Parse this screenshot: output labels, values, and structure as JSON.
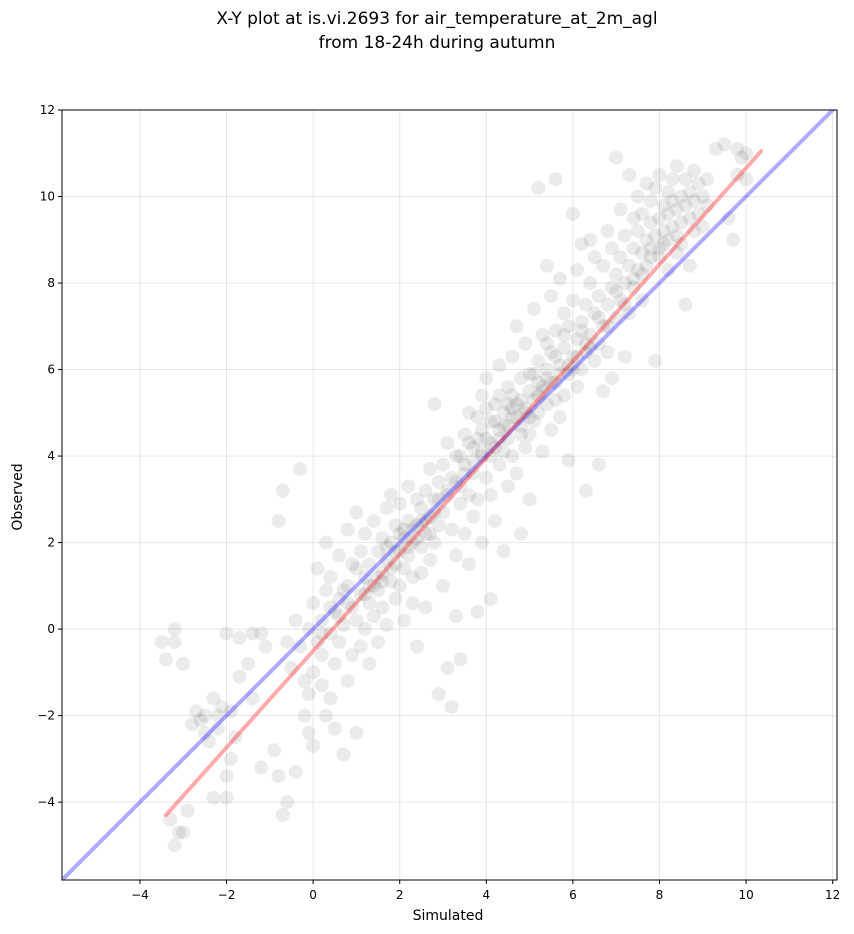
{
  "chart_data": {
    "type": "scatter",
    "title_lines": [
      "X-Y plot at is.vi.2693 for air_temperature_at_2m_agl",
      "from 18-24h during autumn"
    ],
    "xlabel": "Simulated",
    "ylabel": "Observed",
    "xlim": [
      -5.8,
      12.1
    ],
    "ylim": [
      -5.8,
      12.0
    ],
    "xticks": [
      -4,
      -2,
      0,
      2,
      4,
      6,
      8,
      10,
      12
    ],
    "yticks": [
      -4,
      -2,
      0,
      2,
      4,
      6,
      8,
      10,
      12
    ],
    "tick_labels_x": [
      "−4",
      "−2",
      "0",
      "2",
      "4",
      "6",
      "8",
      "10",
      "12"
    ],
    "tick_labels_y": [
      "−4",
      "−2",
      "0",
      "2",
      "4",
      "6",
      "8",
      "10",
      "12"
    ],
    "grid": true,
    "point_color": "#000000",
    "point_opacity": 0.08,
    "one_to_one_line": {
      "x": [
        -5.8,
        12.1
      ],
      "y": [
        -5.8,
        12.1
      ],
      "color": "#0000ff"
    },
    "fit_line": {
      "x": [
        -3.4,
        10.35
      ],
      "y": [
        -4.3,
        11.05
      ],
      "color": "#ff0000"
    },
    "points": [
      [
        -3.5,
        -0.3
      ],
      [
        -3.4,
        -0.7
      ],
      [
        -3.2,
        -0.3
      ],
      [
        -3.2,
        0.0
      ],
      [
        -3.0,
        -0.8
      ],
      [
        -3.3,
        -4.4
      ],
      [
        -3.1,
        -4.7
      ],
      [
        -3.2,
        -5.0
      ],
      [
        -2.9,
        -4.2
      ],
      [
        -3.0,
        -4.7
      ],
      [
        -2.7,
        -1.9
      ],
      [
        -2.6,
        -2.1
      ],
      [
        -2.5,
        -2.4
      ],
      [
        -2.4,
        -2.6
      ],
      [
        -2.3,
        -1.6
      ],
      [
        -2.3,
        -3.9
      ],
      [
        -2.2,
        -2.0
      ],
      [
        -2.1,
        -1.8
      ],
      [
        -2.0,
        -0.1
      ],
      [
        -2.0,
        -3.4
      ],
      [
        -2.0,
        -3.9
      ],
      [
        -1.9,
        -3.0
      ],
      [
        -1.8,
        -2.5
      ],
      [
        -1.7,
        -1.1
      ],
      [
        -1.7,
        -0.2
      ],
      [
        -1.5,
        -0.8
      ],
      [
        -1.4,
        -1.6
      ],
      [
        -1.4,
        -0.1
      ],
      [
        -1.2,
        -3.2
      ],
      [
        -1.2,
        -0.1
      ],
      [
        -1.1,
        -0.4
      ],
      [
        -0.9,
        -2.8
      ],
      [
        -0.8,
        -3.4
      ],
      [
        -0.7,
        -4.3
      ],
      [
        -0.6,
        -4.0
      ],
      [
        -0.7,
        3.2
      ],
      [
        -0.8,
        2.5
      ],
      [
        -0.4,
        -3.3
      ],
      [
        -0.3,
        3.7
      ],
      [
        -0.2,
        -2.0
      ],
      [
        -0.5,
        -0.9
      ],
      [
        -0.6,
        -0.3
      ],
      [
        -0.4,
        0.2
      ],
      [
        -0.3,
        -0.4
      ],
      [
        -0.2,
        -1.2
      ],
      [
        -0.1,
        -2.4
      ],
      [
        -0.1,
        -1.5
      ],
      [
        -0.1,
        0.0
      ],
      [
        0.0,
        -2.7
      ],
      [
        0.0,
        -1.0
      ],
      [
        0.0,
        0.6
      ],
      [
        0.1,
        -0.3
      ],
      [
        0.1,
        1.4
      ],
      [
        0.2,
        -1.3
      ],
      [
        0.2,
        -0.6
      ],
      [
        0.2,
        0.2
      ],
      [
        0.3,
        -2.0
      ],
      [
        0.3,
        0.9
      ],
      [
        0.3,
        2.0
      ],
      [
        0.4,
        -0.1
      ],
      [
        0.4,
        -1.6
      ],
      [
        0.4,
        1.2
      ],
      [
        0.5,
        0.4
      ],
      [
        0.5,
        -0.8
      ],
      [
        0.5,
        -2.3
      ],
      [
        0.6,
        0.7
      ],
      [
        0.6,
        1.7
      ],
      [
        0.6,
        -0.3
      ],
      [
        0.7,
        0.1
      ],
      [
        0.7,
        -2.9
      ],
      [
        0.8,
        1.0
      ],
      [
        0.8,
        -1.2
      ],
      [
        0.8,
        2.3
      ],
      [
        0.9,
        0.5
      ],
      [
        0.9,
        -0.6
      ],
      [
        0.9,
        1.5
      ],
      [
        1.0,
        0.2
      ],
      [
        1.0,
        -2.4
      ],
      [
        1.0,
        2.7
      ],
      [
        1.1,
        0.8
      ],
      [
        1.1,
        -0.4
      ],
      [
        1.1,
        1.8
      ],
      [
        1.2,
        1.2
      ],
      [
        1.2,
        0.0
      ],
      [
        1.2,
        2.2
      ],
      [
        1.3,
        0.6
      ],
      [
        1.3,
        1.5
      ],
      [
        1.3,
        -0.8
      ],
      [
        1.4,
        1.0
      ],
      [
        1.4,
        2.5
      ],
      [
        1.4,
        0.3
      ],
      [
        1.5,
        1.8
      ],
      [
        1.5,
        0.9
      ],
      [
        1.5,
        -0.3
      ],
      [
        1.6,
        1.3
      ],
      [
        1.6,
        2.1
      ],
      [
        1.6,
        0.5
      ],
      [
        1.7,
        1.6
      ],
      [
        1.7,
        2.8
      ],
      [
        1.7,
        0.1
      ],
      [
        1.8,
        1.1
      ],
      [
        1.8,
        2.0
      ],
      [
        1.8,
        3.1
      ],
      [
        1.9,
        1.5
      ],
      [
        1.9,
        0.7
      ],
      [
        1.9,
        2.4
      ],
      [
        2.0,
        1.8
      ],
      [
        2.0,
        1.0
      ],
      [
        2.0,
        2.9
      ],
      [
        2.1,
        2.1
      ],
      [
        2.1,
        1.4
      ],
      [
        2.1,
        0.2
      ],
      [
        2.2,
        2.5
      ],
      [
        2.2,
        1.7
      ],
      [
        2.2,
        3.3
      ],
      [
        2.3,
        2.0
      ],
      [
        2.3,
        1.2
      ],
      [
        2.3,
        0.6
      ],
      [
        2.4,
        2.4
      ],
      [
        2.4,
        3.0
      ],
      [
        2.4,
        -0.4
      ],
      [
        2.5,
        1.9
      ],
      [
        2.5,
        2.8
      ],
      [
        2.5,
        1.3
      ],
      [
        2.6,
        3.2
      ],
      [
        2.6,
        2.2
      ],
      [
        2.6,
        0.5
      ],
      [
        2.7,
        2.6
      ],
      [
        2.7,
        3.7
      ],
      [
        2.7,
        1.6
      ],
      [
        2.8,
        3.0
      ],
      [
        2.8,
        2.0
      ],
      [
        2.8,
        5.2
      ],
      [
        2.9,
        -1.5
      ],
      [
        2.9,
        3.4
      ],
      [
        2.9,
        2.4
      ],
      [
        3.0,
        1.0
      ],
      [
        3.0,
        3.8
      ],
      [
        3.0,
        2.7
      ],
      [
        3.1,
        3.1
      ],
      [
        3.1,
        -0.9
      ],
      [
        3.1,
        4.3
      ],
      [
        3.2,
        -1.8
      ],
      [
        3.2,
        2.3
      ],
      [
        3.2,
        3.5
      ],
      [
        3.3,
        1.7
      ],
      [
        3.3,
        4.0
      ],
      [
        3.3,
        0.3
      ],
      [
        3.4,
        2.9
      ],
      [
        3.4,
        3.3
      ],
      [
        3.4,
        -0.7
      ],
      [
        3.5,
        4.5
      ],
      [
        3.5,
        2.2
      ],
      [
        3.5,
        3.8
      ],
      [
        3.6,
        3.1
      ],
      [
        3.6,
        5.0
      ],
      [
        3.6,
        1.5
      ],
      [
        3.7,
        4.2
      ],
      [
        3.7,
        2.6
      ],
      [
        3.7,
        3.6
      ],
      [
        3.8,
        4.9
      ],
      [
        3.8,
        3.0
      ],
      [
        3.8,
        0.4
      ],
      [
        3.9,
        4.0
      ],
      [
        3.9,
        5.4
      ],
      [
        3.9,
        2.0
      ],
      [
        4.0,
        4.4
      ],
      [
        4.0,
        3.5
      ],
      [
        4.0,
        5.8
      ],
      [
        4.1,
        4.8
      ],
      [
        4.1,
        3.1
      ],
      [
        4.1,
        0.7
      ],
      [
        4.2,
        4.2
      ],
      [
        4.2,
        5.2
      ],
      [
        4.2,
        2.5
      ],
      [
        4.3,
        4.6
      ],
      [
        4.3,
        3.8
      ],
      [
        4.3,
        6.1
      ],
      [
        4.4,
        5.0
      ],
      [
        4.4,
        4.1
      ],
      [
        4.4,
        1.8
      ],
      [
        4.5,
        4.4
      ],
      [
        4.5,
        5.6
      ],
      [
        4.5,
        3.3
      ],
      [
        4.6,
        4.9
      ],
      [
        4.6,
        4.0
      ],
      [
        4.6,
        6.3
      ],
      [
        4.7,
        5.2
      ],
      [
        4.7,
        3.6
      ],
      [
        4.7,
        7.0
      ],
      [
        4.8,
        4.7
      ],
      [
        4.8,
        5.8
      ],
      [
        4.8,
        2.2
      ],
      [
        4.9,
        5.1
      ],
      [
        4.9,
        4.2
      ],
      [
        4.9,
        6.6
      ],
      [
        5.0,
        5.5
      ],
      [
        5.0,
        4.5
      ],
      [
        5.0,
        3.0
      ],
      [
        5.1,
        5.9
      ],
      [
        5.1,
        4.8
      ],
      [
        5.1,
        7.4
      ],
      [
        5.2,
        6.2
      ],
      [
        5.2,
        5.0
      ],
      [
        5.2,
        10.2
      ],
      [
        5.3,
        5.6
      ],
      [
        5.3,
        4.1
      ],
      [
        5.3,
        6.8
      ],
      [
        5.4,
        6.0
      ],
      [
        5.4,
        5.2
      ],
      [
        5.4,
        8.4
      ],
      [
        5.5,
        6.4
      ],
      [
        5.5,
        4.6
      ],
      [
        5.5,
        7.7
      ],
      [
        5.6,
        5.7
      ],
      [
        5.6,
        6.9
      ],
      [
        5.6,
        10.4
      ],
      [
        5.7,
        6.1
      ],
      [
        5.7,
        4.9
      ],
      [
        5.7,
        8.1
      ],
      [
        5.8,
        6.5
      ],
      [
        5.8,
        5.4
      ],
      [
        5.8,
        7.3
      ],
      [
        5.9,
        5.9
      ],
      [
        5.9,
        7.0
      ],
      [
        5.9,
        3.9
      ],
      [
        6.0,
        6.3
      ],
      [
        6.0,
        7.6
      ],
      [
        6.0,
        9.6
      ],
      [
        6.1,
        6.7
      ],
      [
        6.1,
        5.6
      ],
      [
        6.1,
        8.3
      ],
      [
        6.2,
        7.1
      ],
      [
        6.2,
        6.0
      ],
      [
        6.2,
        8.9
      ],
      [
        6.3,
        6.4
      ],
      [
        6.3,
        7.5
      ],
      [
        6.3,
        3.2
      ],
      [
        6.4,
        6.8
      ],
      [
        6.4,
        8.0
      ],
      [
        6.4,
        9.0
      ],
      [
        6.5,
        7.3
      ],
      [
        6.5,
        6.2
      ],
      [
        6.5,
        8.6
      ],
      [
        6.6,
        7.7
      ],
      [
        6.6,
        6.6
      ],
      [
        6.6,
        3.8
      ],
      [
        6.7,
        7.0
      ],
      [
        6.7,
        8.4
      ],
      [
        6.7,
        5.5
      ],
      [
        6.8,
        7.5
      ],
      [
        6.8,
        9.2
      ],
      [
        6.8,
        6.4
      ],
      [
        6.9,
        7.9
      ],
      [
        6.9,
        8.8
      ],
      [
        6.9,
        5.8
      ],
      [
        7.0,
        8.2
      ],
      [
        7.0,
        7.2
      ],
      [
        7.0,
        10.9
      ],
      [
        7.1,
        8.6
      ],
      [
        7.1,
        7.6
      ],
      [
        7.1,
        9.7
      ],
      [
        7.2,
        8.0
      ],
      [
        7.2,
        9.1
      ],
      [
        7.2,
        6.3
      ],
      [
        7.3,
        8.4
      ],
      [
        7.3,
        10.5
      ],
      [
        7.3,
        7.3
      ],
      [
        7.4,
        8.8
      ],
      [
        7.4,
        9.5
      ],
      [
        7.4,
        7.9
      ],
      [
        7.5,
        9.2
      ],
      [
        7.5,
        8.3
      ],
      [
        7.5,
        10.0
      ],
      [
        7.6,
        8.7
      ],
      [
        7.6,
        9.6
      ],
      [
        7.6,
        7.6
      ],
      [
        7.7,
        9.0
      ],
      [
        7.7,
        10.3
      ],
      [
        7.7,
        8.4
      ],
      [
        7.8,
        9.4
      ],
      [
        7.8,
        8.8
      ],
      [
        7.8,
        9.9
      ],
      [
        7.9,
        9.1
      ],
      [
        7.9,
        10.2
      ],
      [
        7.9,
        6.2
      ],
      [
        8.0,
        9.5
      ],
      [
        8.0,
        8.6
      ],
      [
        8.0,
        10.5
      ],
      [
        8.1,
        9.2
      ],
      [
        8.1,
        9.8
      ],
      [
        8.1,
        8.9
      ],
      [
        8.2,
        9.6
      ],
      [
        8.2,
        10.1
      ],
      [
        8.2,
        8.3
      ],
      [
        8.3,
        9.3
      ],
      [
        8.3,
        10.4
      ],
      [
        8.3,
        9.9
      ],
      [
        8.4,
        9.7
      ],
      [
        8.4,
        8.7
      ],
      [
        8.4,
        10.7
      ],
      [
        8.5,
        9.4
      ],
      [
        8.5,
        10.0
      ],
      [
        8.5,
        8.9
      ],
      [
        8.6,
        9.8
      ],
      [
        8.6,
        10.4
      ],
      [
        8.6,
        7.5
      ],
      [
        8.7,
        9.5
      ],
      [
        8.7,
        10.1
      ],
      [
        8.7,
        8.4
      ],
      [
        8.8,
        9.9
      ],
      [
        8.8,
        9.2
      ],
      [
        8.8,
        10.6
      ],
      [
        8.9,
        9.6
      ],
      [
        8.9,
        10.3
      ],
      [
        9.0,
        9.3
      ],
      [
        9.0,
        10.0
      ],
      [
        9.1,
        9.8
      ],
      [
        9.1,
        10.4
      ],
      [
        9.3,
        11.1
      ],
      [
        9.5,
        11.2
      ],
      [
        9.6,
        9.5
      ],
      [
        9.7,
        9.0
      ],
      [
        9.8,
        11.1
      ],
      [
        9.8,
        10.5
      ],
      [
        10.0,
        10.4
      ],
      [
        10.0,
        11.0
      ],
      [
        9.9,
        10.9
      ],
      [
        1.3,
        1.0
      ],
      [
        1.5,
        1.2
      ],
      [
        1.7,
        1.9
      ],
      [
        1.9,
        1.8
      ],
      [
        2.1,
        2.3
      ],
      [
        2.3,
        2.3
      ],
      [
        2.5,
        2.5
      ],
      [
        2.7,
        2.2
      ],
      [
        2.9,
        3.0
      ],
      [
        3.1,
        3.2
      ],
      [
        3.3,
        3.4
      ],
      [
        3.5,
        3.6
      ],
      [
        3.7,
        3.9
      ],
      [
        3.9,
        4.1
      ],
      [
        4.1,
        4.3
      ],
      [
        4.3,
        4.4
      ],
      [
        4.5,
        4.7
      ],
      [
        4.7,
        4.9
      ],
      [
        4.9,
        5.0
      ],
      [
        5.1,
        5.3
      ],
      [
        5.3,
        5.5
      ],
      [
        5.5,
        5.7
      ],
      [
        5.7,
        5.9
      ],
      [
        5.9,
        6.1
      ],
      [
        6.1,
        6.3
      ],
      [
        6.3,
        6.6
      ],
      [
        4.2,
        4.8
      ],
      [
        4.4,
        4.7
      ],
      [
        4.6,
        5.4
      ],
      [
        4.8,
        5.3
      ],
      [
        5.0,
        5.9
      ],
      [
        5.2,
        5.4
      ],
      [
        5.4,
        6.6
      ],
      [
        5.6,
        6.3
      ],
      [
        4.0,
        5.1
      ],
      [
        3.8,
        4.4
      ],
      [
        3.6,
        4.3
      ],
      [
        3.4,
        4.0
      ],
      [
        4.6,
        5.1
      ],
      [
        4.8,
        4.5
      ],
      [
        5.0,
        4.9
      ],
      [
        5.2,
        5.7
      ],
      [
        4.3,
        5.4
      ],
      [
        4.5,
        5.2
      ],
      [
        3.9,
        4.6
      ],
      [
        4.1,
        4.0
      ],
      [
        0.6,
        0.3
      ],
      [
        0.8,
        0.6
      ],
      [
        1.0,
        1.4
      ],
      [
        1.2,
        0.8
      ],
      [
        0.4,
        0.5
      ],
      [
        0.2,
        -0.1
      ],
      [
        0.7,
        0.9
      ],
      [
        1.6,
        1.1
      ],
      [
        1.8,
        1.4
      ],
      [
        2.0,
        2.2
      ],
      [
        2.2,
        1.9
      ],
      [
        2.4,
        2.1
      ],
      [
        2.6,
        2.5
      ],
      [
        2.8,
        2.7
      ],
      [
        -2.5,
        -2.0
      ],
      [
        -2.2,
        -2.3
      ],
      [
        -1.9,
        -1.9
      ],
      [
        -2.8,
        -2.2
      ],
      [
        6.6,
        7.2
      ],
      [
        6.8,
        7.0
      ],
      [
        7.0,
        7.8
      ],
      [
        7.2,
        7.5
      ],
      [
        7.4,
        8.1
      ],
      [
        7.6,
        8.2
      ],
      [
        6.2,
        6.9
      ],
      [
        6.4,
        6.5
      ],
      [
        5.8,
        6.8
      ],
      [
        6.0,
        6.0
      ],
      [
        5.6,
        5.3
      ],
      [
        5.4,
        5.8
      ],
      [
        8.2,
        9.0
      ],
      [
        8.4,
        9.1
      ],
      [
        8.0,
        8.8
      ],
      [
        7.8,
        8.6
      ]
    ]
  }
}
